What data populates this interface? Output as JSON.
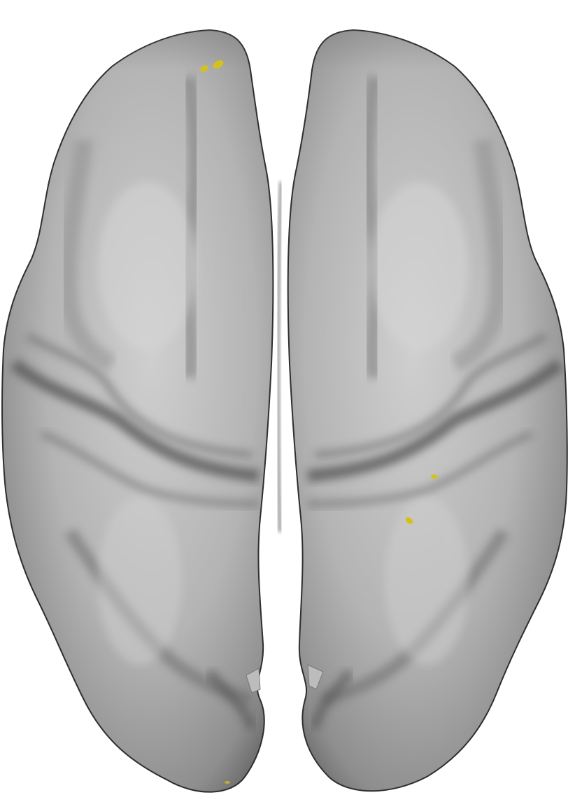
{
  "view": {
    "background_color": "#ffffff",
    "surface_base_color": "#9a9a9a",
    "surface_highlight_color": "#cdcdcd",
    "surface_shadow_color": "#4a4a4a",
    "activation_color": "#d4c21c"
  },
  "hemispheres": [
    {
      "side": "left"
    },
    {
      "side": "right"
    }
  ],
  "activation_clusters": [
    {
      "hemisphere": "left",
      "region": "frontal-pole"
    },
    {
      "hemisphere": "left",
      "region": "frontal-pole"
    },
    {
      "hemisphere": "right",
      "region": "central-sulcus"
    },
    {
      "hemisphere": "right",
      "region": "postcentral"
    },
    {
      "hemisphere": "left",
      "region": "occipital-pole"
    }
  ]
}
